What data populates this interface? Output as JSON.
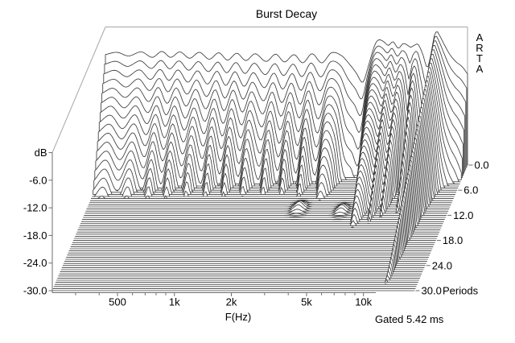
{
  "chart_data": {
    "type": "waterfall-3d",
    "title": "Burst Decay",
    "x_axis": {
      "title": "F(Hz)",
      "scale": "log",
      "range_hz": [
        226,
        18600
      ],
      "major_ticks": [
        {
          "f": 500,
          "label": "500"
        },
        {
          "f": 1000,
          "label": "1k"
        },
        {
          "f": 2000,
          "label": "2k"
        },
        {
          "f": 5000,
          "label": "5k"
        },
        {
          "f": 10000,
          "label": "10k"
        }
      ],
      "minor_ticks": [
        300,
        400,
        600,
        700,
        800,
        900,
        3000,
        4000,
        6000,
        7000,
        8000,
        9000
      ]
    },
    "y_axis": {
      "title": "dB",
      "range_db": [
        -30,
        0
      ],
      "tick_step_db": 6,
      "ticks": [
        "-6.0",
        "-12.0",
        "-18.0",
        "-24.0",
        "-30.0"
      ]
    },
    "z_axis": {
      "title": "Periods",
      "range_periods": [
        0,
        30
      ],
      "curve_step_periods": 0.5,
      "ticks": [
        {
          "p": 0,
          "label": "0.0"
        },
        {
          "p": 6,
          "label": "6.0"
        },
        {
          "p": 12,
          "label": "12.0"
        },
        {
          "p": 18,
          "label": "18.0"
        },
        {
          "p": 24,
          "label": "24.0"
        },
        {
          "p": 30,
          "label": "30.0"
        }
      ]
    },
    "annotations": {
      "gated": "Gated 5.42 ms",
      "watermark": "ARTA"
    },
    "floor_db": -30,
    "response_points_f_db0_decaydbperperiod": [
      [
        226,
        -6.0,
        3.3
      ],
      [
        260,
        -5.5,
        3.0
      ],
      [
        300,
        -6.3,
        3.6
      ],
      [
        350,
        -5.4,
        3.0
      ],
      [
        400,
        -6.6,
        3.9
      ],
      [
        450,
        -5.3,
        3.0
      ],
      [
        500,
        -6.6,
        4.1
      ],
      [
        560,
        -5.4,
        3.0
      ],
      [
        630,
        -6.8,
        4.3
      ],
      [
        710,
        -5.5,
        3.1
      ],
      [
        800,
        -7.0,
        4.5
      ],
      [
        900,
        -5.6,
        3.1
      ],
      [
        1000,
        -7.2,
        4.6
      ],
      [
        1120,
        -5.7,
        3.1
      ],
      [
        1250,
        -7.3,
        4.7
      ],
      [
        1400,
        -5.8,
        3.2
      ],
      [
        1600,
        -7.5,
        4.8
      ],
      [
        1800,
        -5.9,
        3.2
      ],
      [
        2000,
        -7.6,
        5.0
      ],
      [
        2250,
        -6.0,
        3.2
      ],
      [
        2500,
        -7.8,
        5.1
      ],
      [
        2800,
        -5.8,
        3.1
      ],
      [
        3150,
        -7.8,
        5.2
      ],
      [
        3550,
        -5.6,
        3.0
      ],
      [
        4000,
        -6.2,
        3.4
      ],
      [
        4400,
        -8.0,
        5.8
      ],
      [
        4800,
        -10.0,
        6.0
      ],
      [
        5200,
        -12.0,
        6.2
      ],
      [
        5600,
        -8.0,
        3.0
      ],
      [
        6000,
        -4.0,
        2.0
      ],
      [
        6300,
        -2.8,
        1.8
      ],
      [
        6700,
        -3.2,
        2.0
      ],
      [
        7100,
        -4.0,
        2.4
      ],
      [
        7500,
        -3.2,
        1.9
      ],
      [
        8000,
        -4.6,
        2.6
      ],
      [
        8500,
        -3.6,
        2.1
      ],
      [
        9000,
        -4.0,
        3.4
      ],
      [
        9300,
        -4.4,
        6.0
      ],
      [
        9700,
        -4.0,
        3.0
      ],
      [
        10200,
        -3.8,
        2.4
      ],
      [
        10800,
        -6.0,
        5.0
      ],
      [
        11400,
        -8.8,
        6.5
      ],
      [
        11900,
        -6.0,
        3.0
      ],
      [
        12400,
        -2.0,
        1.3
      ],
      [
        12800,
        -1.0,
        1.0
      ],
      [
        13300,
        -2.0,
        1.4
      ],
      [
        14000,
        -3.8,
        2.2
      ],
      [
        15000,
        -6.0,
        3.6
      ],
      [
        16200,
        -7.6,
        4.4
      ],
      [
        17400,
        -8.6,
        4.8
      ],
      [
        18600,
        -10.2,
        5.2
      ]
    ],
    "late_bumps": [
      {
        "f": 3000,
        "period": 10.5,
        "height_db": 1.6,
        "period_width": 1.3,
        "logf_width": 0.032
      },
      {
        "f": 5100,
        "period": 11.0,
        "height_db": 1.4,
        "period_width": 1.2,
        "logf_width": 0.028
      }
    ],
    "colors": {
      "curve": "#3c3c3c",
      "frame": "#a6a6a6",
      "axis": "#6e6e6e",
      "text": "#000000",
      "background": "#ffffff"
    }
  }
}
